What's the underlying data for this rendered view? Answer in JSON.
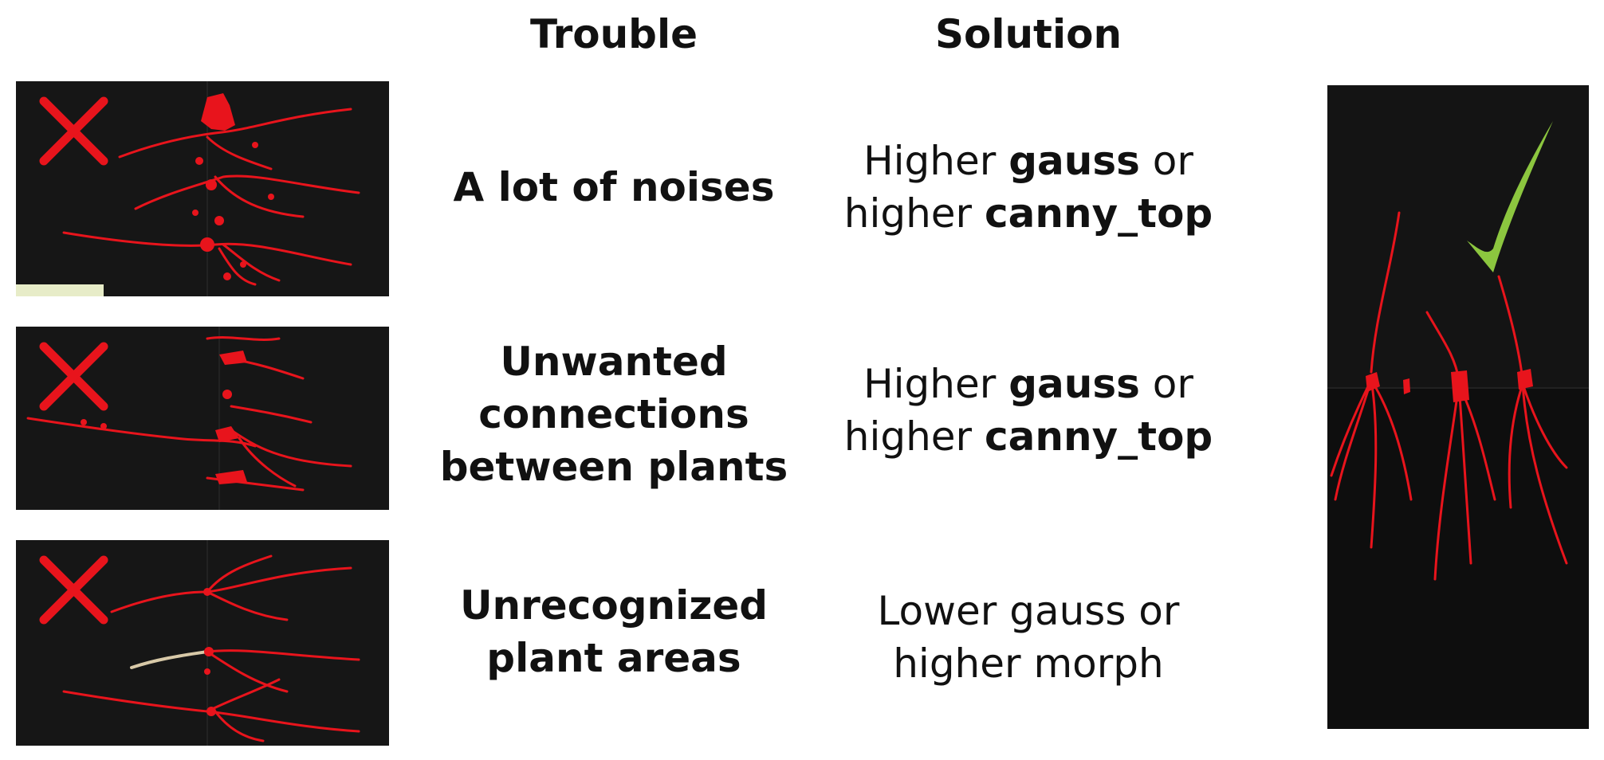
{
  "headers": {
    "trouble": "Trouble",
    "solution": "Solution"
  },
  "rows": [
    {
      "trouble_lines": [
        "A lot of noises"
      ],
      "solution_lines": [
        [
          {
            "t": "Higher "
          },
          {
            "t": "gauss",
            "b": true
          },
          {
            "t": " or"
          }
        ],
        [
          {
            "t": "higher "
          },
          {
            "t": "canny_top",
            "b": true
          }
        ]
      ],
      "status_icon": "red-x-icon"
    },
    {
      "trouble_lines": [
        "Unwanted",
        "connections",
        "between plants"
      ],
      "solution_lines": [
        [
          {
            "t": "Higher "
          },
          {
            "t": "gauss",
            "b": true
          },
          {
            "t": " or"
          }
        ],
        [
          {
            "t": "higher "
          },
          {
            "t": "canny_top",
            "b": true
          }
        ]
      ],
      "status_icon": "red-x-icon"
    },
    {
      "trouble_lines": [
        "Unrecognized",
        "plant areas"
      ],
      "solution_lines": [
        [
          {
            "t": "Lower gauss or"
          }
        ],
        [
          {
            "t": "higher morph"
          }
        ]
      ],
      "status_icon": "red-x-icon"
    }
  ],
  "result_icon": "green-check-icon",
  "colors": {
    "root_red": "#e8141c",
    "cross_red": "#e8141c",
    "check_green": "#8cc63f",
    "panel_bg": "#151515"
  }
}
